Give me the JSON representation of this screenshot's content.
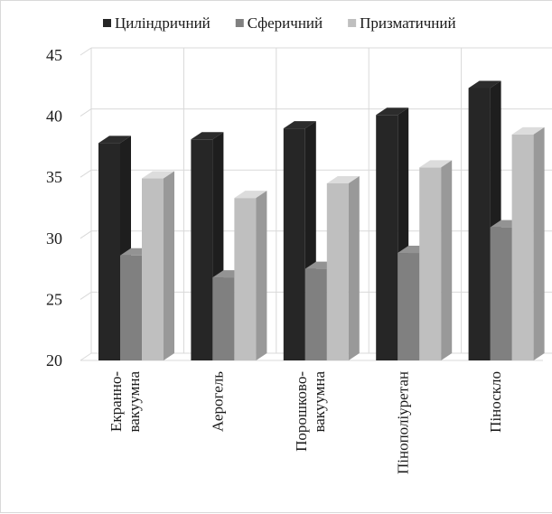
{
  "chart_data": {
    "type": "bar",
    "categories": [
      [
        "Екранно-",
        "вакуумна"
      ],
      [
        "Аерогель"
      ],
      [
        "Порошково-",
        "вакуумна"
      ],
      [
        "Пінополіуретан"
      ],
      [
        "Піноскло"
      ]
    ],
    "series": [
      {
        "name": "Циліндричний",
        "values": [
          37.8,
          38.1,
          39.0,
          40.1,
          42.3
        ],
        "color": "#262626"
      },
      {
        "name": "Сферичний",
        "values": [
          28.6,
          26.8,
          27.5,
          28.8,
          30.9
        ],
        "color": "#808080"
      },
      {
        "name": "Призматичний",
        "values": [
          34.9,
          33.3,
          34.5,
          35.8,
          38.5
        ],
        "color": "#bfbfbf"
      }
    ],
    "ylim": [
      20,
      45
    ],
    "yticks": [
      20,
      25,
      30,
      35,
      40,
      45
    ],
    "grid": true,
    "legend_position": "top",
    "title": "",
    "xlabel": "",
    "ylabel": ""
  }
}
